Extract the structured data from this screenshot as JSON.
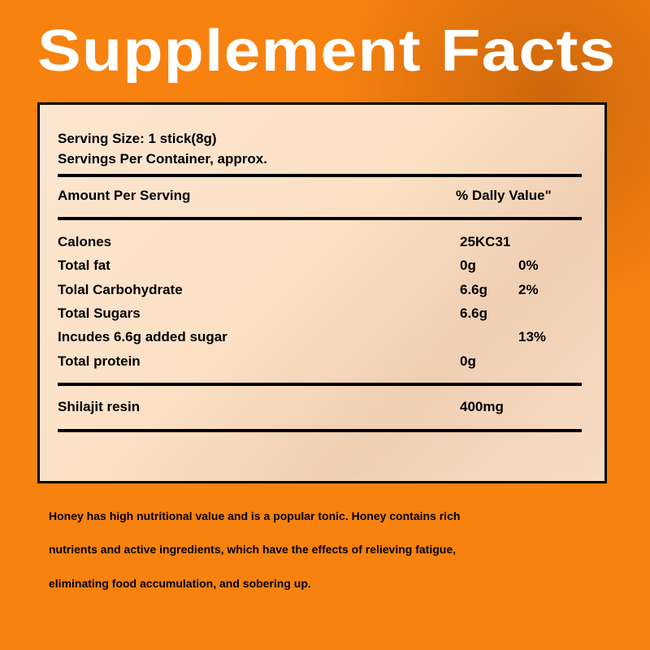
{
  "title": "Supplement Facts",
  "serving_size": "Serving Size: 1 stick(8g)",
  "servings_per_container": "Servings Per Container, approx.",
  "amount_header": "Amount Per Serving",
  "daily_value_header": "% Dally Value\"",
  "rows": [
    {
      "label": "Calones",
      "amount": "25KC31",
      "dv": ""
    },
    {
      "label": "Total fat",
      "amount": "0g",
      "dv": "0%"
    },
    {
      "label": "Tolal Carbohydrate",
      "amount": "6.6g",
      "dv": "2%"
    },
    {
      "label": "Total Sugars",
      "amount": "6.6g",
      "dv": ""
    },
    {
      "label": "Incudes 6.6g added sugar",
      "amount": "",
      "dv": "13%"
    },
    {
      "label": "Total protein",
      "amount": "0g",
      "dv": ""
    }
  ],
  "ingredient": {
    "label": "Shilajit resin",
    "amount": "400mg"
  },
  "description": [
    "Honey has high nutritional value and is a popular tonic. Honey contains rich",
    "nutrients and active ingredients, which have the effects of relieving fatigue,",
    " eliminating food accumulation, and sobering up."
  ]
}
